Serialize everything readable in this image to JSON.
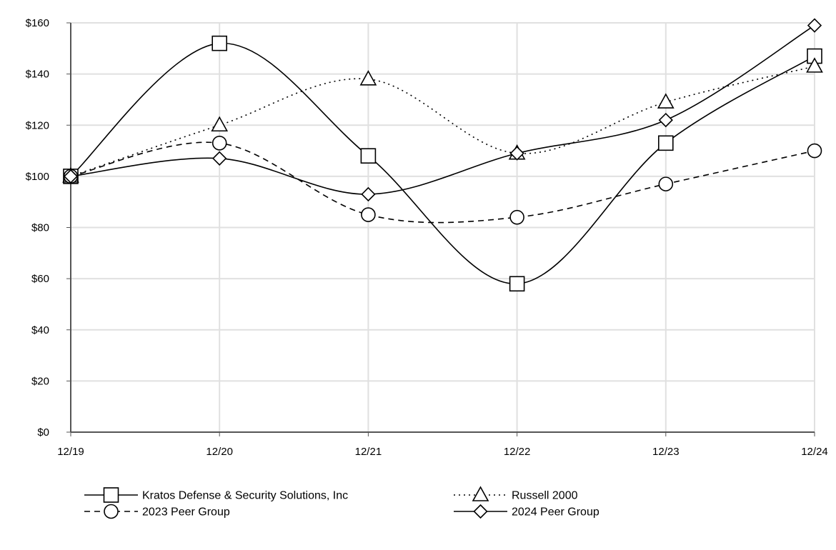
{
  "chart_data": {
    "type": "line",
    "title": "",
    "xlabel": "",
    "ylabel": "",
    "categories": [
      "12/19",
      "12/20",
      "12/21",
      "12/22",
      "12/23",
      "12/24"
    ],
    "ylim": [
      0,
      160
    ],
    "y_ticks": [
      0,
      20,
      40,
      60,
      80,
      100,
      120,
      140,
      160
    ],
    "y_tick_labels": [
      "$0",
      "$20",
      "$40",
      "$60",
      "$80",
      "$100",
      "$120",
      "$140",
      "$160"
    ],
    "grid": true,
    "legend_position": "bottom",
    "series": [
      {
        "name": "Kratos Defense & Security Solutions, Inc",
        "values": [
          100,
          152,
          108,
          58,
          113,
          147
        ],
        "line_style": "solid",
        "marker": "square"
      },
      {
        "name": "Russell 2000",
        "values": [
          100,
          120,
          138,
          109,
          129,
          143
        ],
        "line_style": "dotted",
        "marker": "triangle"
      },
      {
        "name": "2023 Peer Group",
        "values": [
          100,
          113,
          85,
          84,
          97,
          110
        ],
        "line_style": "dashed",
        "marker": "circle"
      },
      {
        "name": "2024 Peer Group",
        "values": [
          100,
          107,
          93,
          109,
          122,
          159
        ],
        "line_style": "solid",
        "marker": "diamond"
      }
    ],
    "colors": {
      "line": "#000000",
      "grid": "#e0e0e0",
      "axis": "#555555",
      "background": "#ffffff"
    }
  }
}
